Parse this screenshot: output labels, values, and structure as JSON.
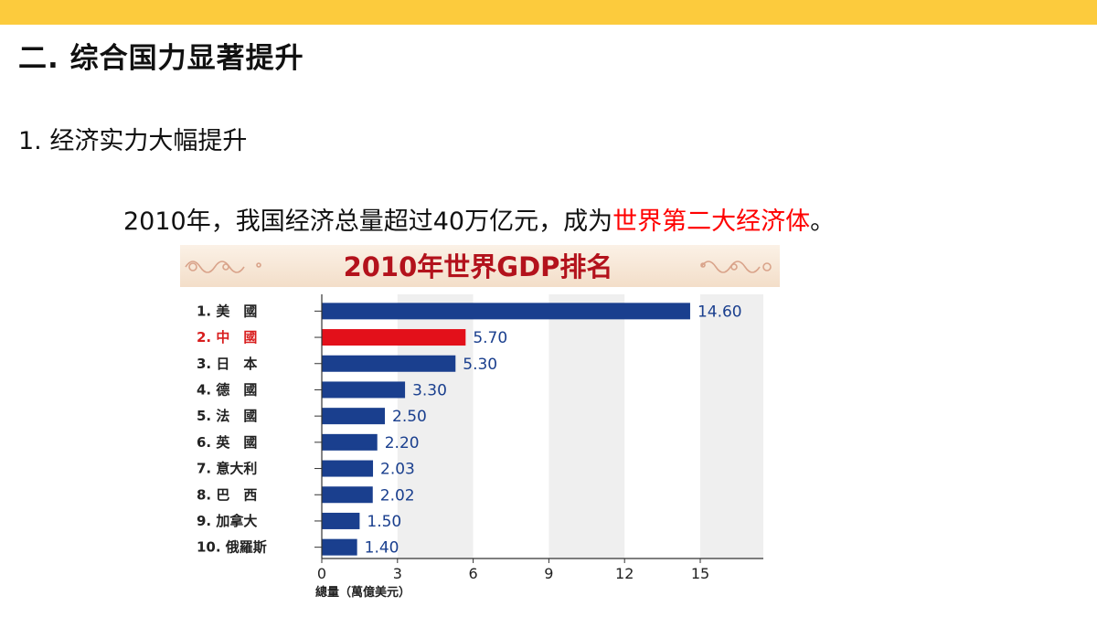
{
  "slide": {
    "heading": "二. 综合国力显著提升",
    "subheading": "1. 经济实力大幅提升",
    "statement_before": "2010年，我国经济总量超过40万亿元，成为",
    "statement_highlight": "世界第二大经济体",
    "statement_after": "。"
  },
  "colors": {
    "top_band": "#FCCB3D",
    "bar": "#1A3F8E",
    "bar_highlight": "#E3101A",
    "title": "#B3121C",
    "label_highlight": "#D81E1E",
    "value_text": "#1A3F8E",
    "highlight_text": "#FF0000"
  },
  "chart_data": {
    "type": "bar",
    "orientation": "horizontal",
    "title": "2010年世界GDP排名",
    "xlabel": "總量（萬億美元）",
    "ylabel": "",
    "xlim": [
      0,
      17.5
    ],
    "x_ticks": [
      0,
      3,
      6,
      9,
      12,
      15
    ],
    "categories": [
      "1.  美　國",
      "2.  中　國",
      "3.  日　本",
      "4.  德　國",
      "5.  法　國",
      "6.  英　國",
      "7.  意大利",
      "8.  巴　西",
      "9.  加拿大",
      "10. 俄羅斯"
    ],
    "values": [
      14.6,
      5.7,
      5.3,
      3.3,
      2.5,
      2.2,
      2.03,
      2.02,
      1.5,
      1.4
    ],
    "value_labels": [
      "14.60",
      "5.70",
      "5.30",
      "3.30",
      "2.50",
      "2.20",
      "2.03",
      "2.02",
      "1.50",
      "1.40"
    ],
    "highlight_index": 1,
    "grid": "vertical shaded bands"
  }
}
